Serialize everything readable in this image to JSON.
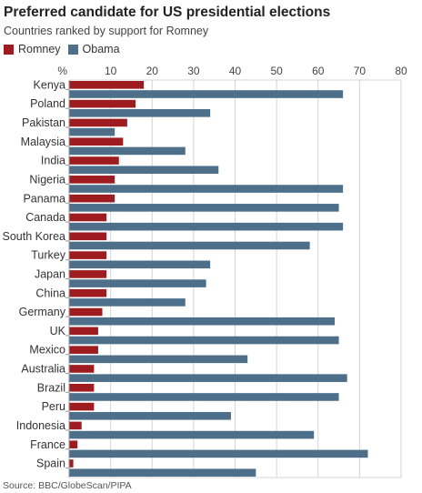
{
  "title": "Preferred candidate for US presidential elections",
  "subtitle": "Countries ranked by support for Romney",
  "source": "Source: BBC/GlobeScan/PIPA",
  "colors": {
    "romney": "#9e1c20",
    "obama": "#4d6f8a",
    "grid": "#d4d4d4",
    "axis": "#9a9a9a"
  },
  "chart_data": {
    "type": "bar",
    "orientation": "horizontal",
    "axis_unit_label": "%",
    "xlim": [
      0,
      80
    ],
    "xticks": [
      10,
      20,
      30,
      40,
      50,
      60,
      70,
      80
    ],
    "grid": true,
    "legend_position": "top-left",
    "categories": [
      "Kenya",
      "Poland",
      "Pakistan",
      "Malaysia",
      "India",
      "Nigeria",
      "Panama",
      "Canada",
      "South Korea",
      "Turkey",
      "Japan",
      "China",
      "Germany",
      "UK",
      "Mexico",
      "Australia",
      "Brazil",
      "Peru",
      "Indonesia",
      "France",
      "Spain"
    ],
    "series": [
      {
        "name": "Romney",
        "color": "#9e1c20",
        "values": [
          18,
          16,
          14,
          13,
          12,
          11,
          11,
          9,
          9,
          9,
          9,
          9,
          8,
          7,
          7,
          6,
          6,
          6,
          3,
          2,
          1
        ]
      },
      {
        "name": "Obama",
        "color": "#4d6f8a",
        "values": [
          66,
          34,
          11,
          28,
          36,
          66,
          65,
          66,
          58,
          34,
          33,
          28,
          64,
          65,
          43,
          67,
          65,
          39,
          59,
          72,
          45
        ]
      }
    ]
  }
}
